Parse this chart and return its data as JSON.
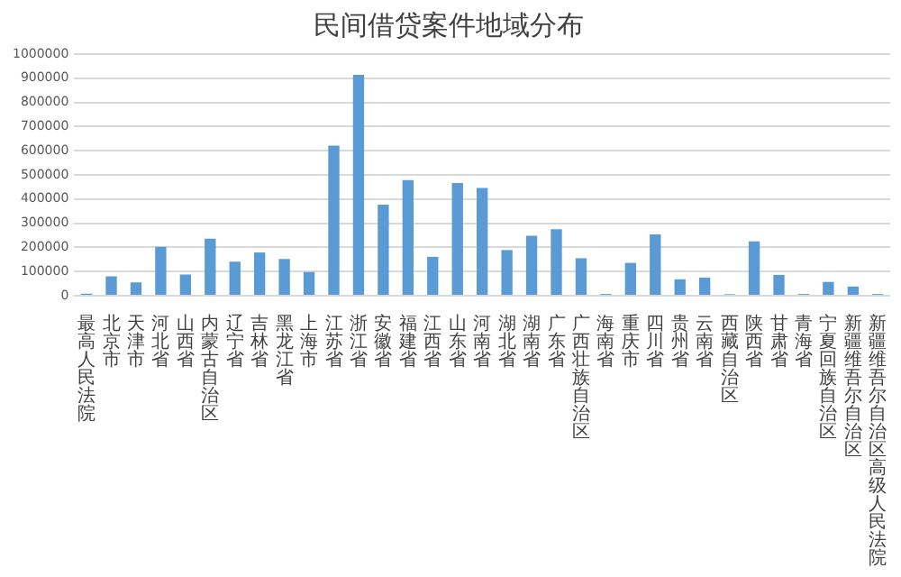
{
  "chart_data": {
    "type": "bar",
    "title": "民间借贷案件地域分布",
    "categories": [
      "最高人民法院",
      "北京市",
      "天津市",
      "河北省",
      "山西省",
      "内蒙古自治区",
      "辽宁省",
      "吉林省",
      "黑龙江省",
      "上海市",
      "江苏省",
      "浙江省",
      "安徽省",
      "福建省",
      "江西省",
      "山东省",
      "河南省",
      "湖北省",
      "湖南省",
      "广东省",
      "广西壮族自治区",
      "海南省",
      "重庆市",
      "四川省",
      "贵州省",
      "云南省",
      "西藏自治区",
      "陕西省",
      "甘肃省",
      "青海省",
      "宁夏回族自治区",
      "新疆维吾尔自治区",
      "新疆维吾尔自治区高级人民法院"
    ],
    "values": [
      8000,
      80000,
      55000,
      202000,
      88000,
      236000,
      141000,
      179000,
      152000,
      98000,
      621000,
      914000,
      377000,
      479000,
      161000,
      466000,
      446000,
      189000,
      248000,
      275000,
      155000,
      7000,
      136000,
      254000,
      68000,
      75000,
      6000,
      225000,
      86000,
      7000,
      57000,
      38000,
      7000
    ],
    "color": "#5b9bd5",
    "ylim": [
      0,
      1000000
    ],
    "yticks": [
      0,
      100000,
      200000,
      300000,
      400000,
      500000,
      600000,
      700000,
      800000,
      900000,
      1000000
    ],
    "grid": "y",
    "legend": false
  }
}
